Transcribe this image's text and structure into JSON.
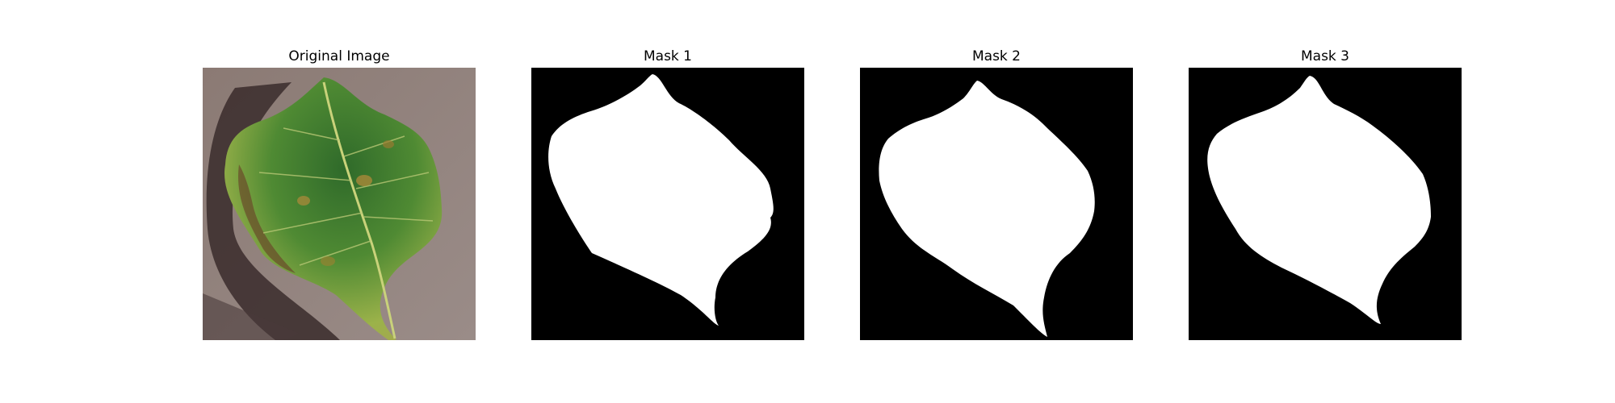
{
  "panels": [
    {
      "title": "Original Image"
    },
    {
      "title": "Mask 1"
    },
    {
      "title": "Mask 2"
    },
    {
      "title": "Mask 3"
    }
  ]
}
